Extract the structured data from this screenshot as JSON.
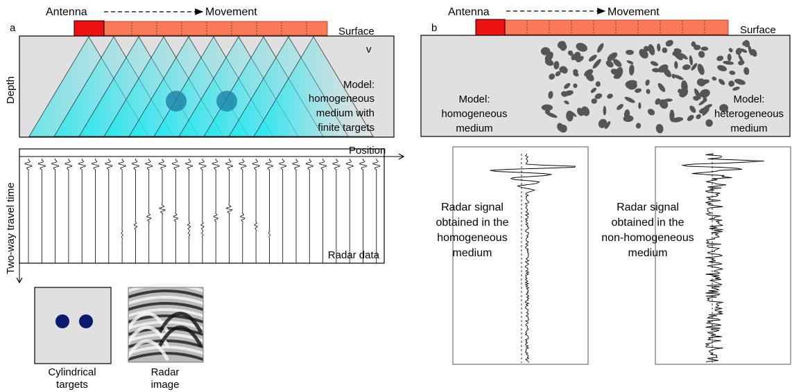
{
  "panel_a": {
    "letter": "a",
    "antenna": "Antenna",
    "movement": "Movement",
    "surface": "Surface",
    "v": "v",
    "depth": "Depth",
    "model_lines": [
      "Model:",
      "homogeneous",
      "medium with",
      "finite targets"
    ],
    "position": "Position",
    "two_way": "Two-way travel time",
    "radar_data": "Radar data",
    "cyl_lines": [
      "Cylindrical",
      "targets"
    ],
    "radar_image_lines": [
      "Radar",
      "image"
    ],
    "colors": {
      "antenna": "#ee1111",
      "track": "#f87858",
      "cone": "#00e8f0",
      "target": "#1f7fa8",
      "dot": "#0a1a6e",
      "ground": "#e0e0e0"
    }
  },
  "panel_b": {
    "letter": "b",
    "antenna": "Antenna",
    "movement": "Movement",
    "surface": "Surface",
    "model_homo_lines": [
      "Model:",
      "homogeneous",
      "medium"
    ],
    "model_hetero_lines": [
      "Model:",
      "heterogeneous",
      "medium"
    ],
    "signal_homo_lines": [
      "Radar signal",
      "obtained in the",
      "homogeneous",
      "medium"
    ],
    "signal_hetero_lines": [
      "Radar signal",
      "obtained in the",
      "non-homogeneous",
      "medium"
    ],
    "colors": {
      "stone": "#555555"
    }
  }
}
